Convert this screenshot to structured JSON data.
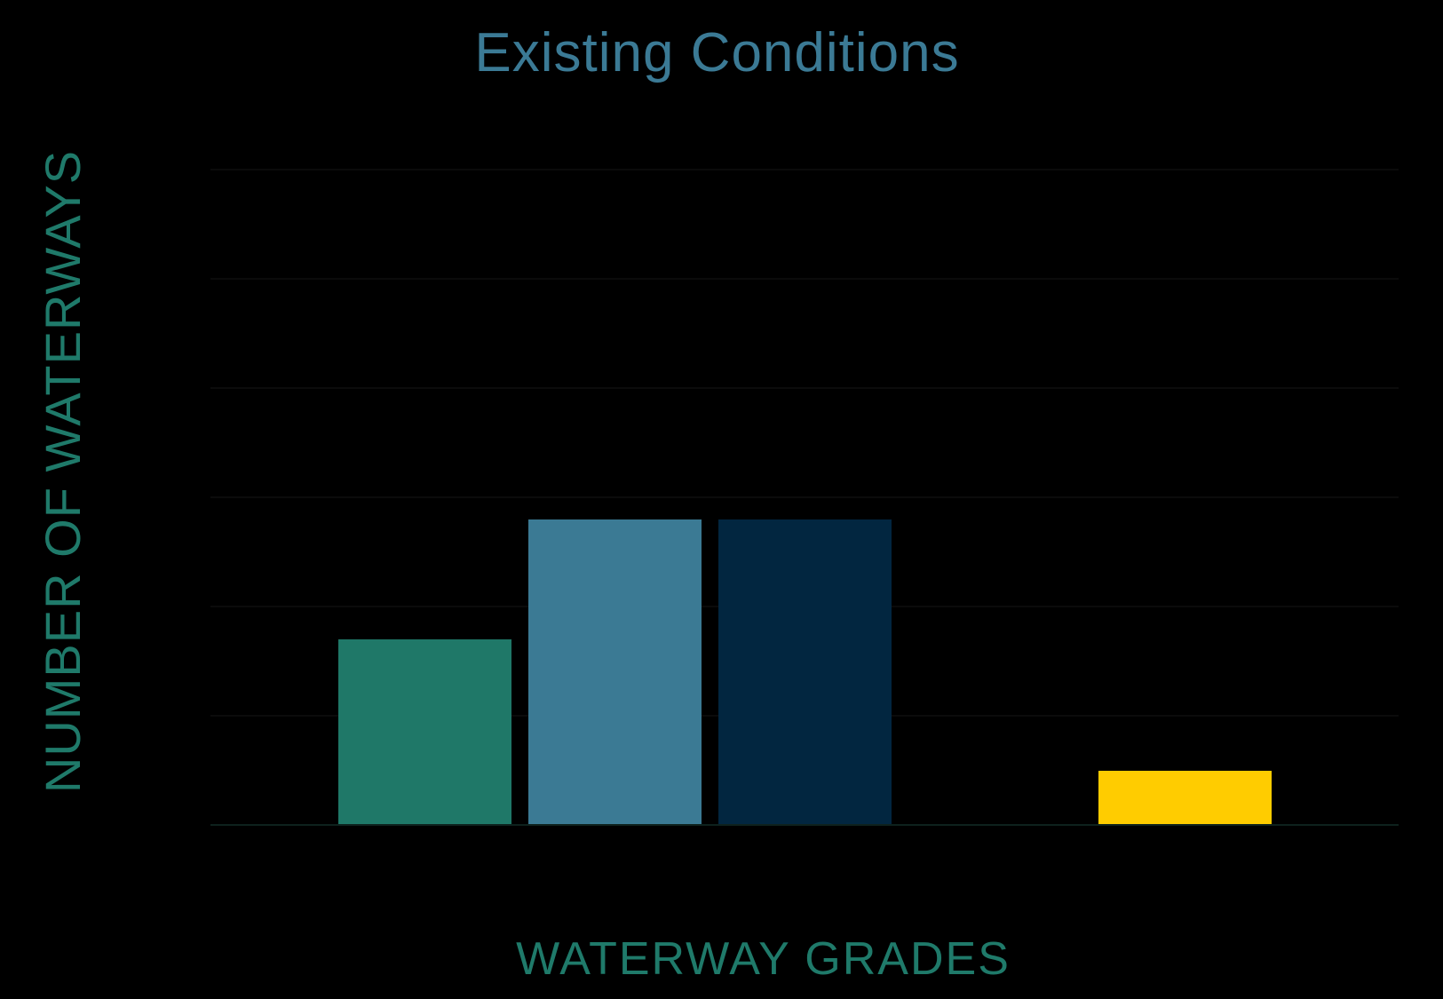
{
  "chart": {
    "title": "Existing Conditions",
    "xlabel": "WATERWAY GRADES",
    "ylabel": "NUMBER OF WATERWAYS",
    "colors": {
      "background": "#000000",
      "title": "#3b7a95",
      "axis_labels": "#1f7a6a",
      "baseline": "#0e211d"
    }
  },
  "chart_data": {
    "type": "bar",
    "title": "Existing Conditions",
    "xlabel": "WATERWAY GRADES",
    "ylabel": "NUMBER OF WATERWAYS",
    "categories": [
      "",
      "",
      "",
      "",
      ""
    ],
    "values": [
      17,
      28,
      28,
      0,
      5
    ],
    "bar_colors": [
      "#1f7868",
      "#3b7a94",
      "#022640",
      "#000000",
      "#ffcc00"
    ],
    "ylim": [
      0,
      63
    ],
    "grid": true,
    "gridline_interval": 10,
    "legend": null
  }
}
